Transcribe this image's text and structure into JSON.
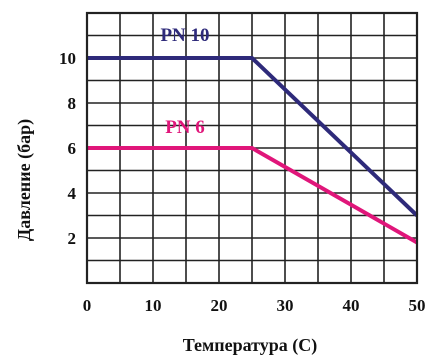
{
  "chart_data": {
    "type": "line",
    "title": "",
    "xlabel": "Температура (С)",
    "ylabel": "Давление (бар)",
    "xlim": [
      0,
      50
    ],
    "ylim": [
      0,
      12
    ],
    "x_ticks": [
      0,
      10,
      20,
      30,
      40,
      50
    ],
    "y_ticks": [
      2,
      4,
      6,
      8,
      10
    ],
    "grid": true,
    "legend": "inline labels",
    "series": [
      {
        "name": "PN 10",
        "color": "#2e2a7a",
        "x": [
          0,
          25,
          50
        ],
        "y": [
          10,
          10,
          3
        ]
      },
      {
        "name": "PN 6",
        "color": "#e0167a",
        "x": [
          0,
          25,
          50
        ],
        "y": [
          6,
          6,
          1.8
        ]
      }
    ]
  }
}
